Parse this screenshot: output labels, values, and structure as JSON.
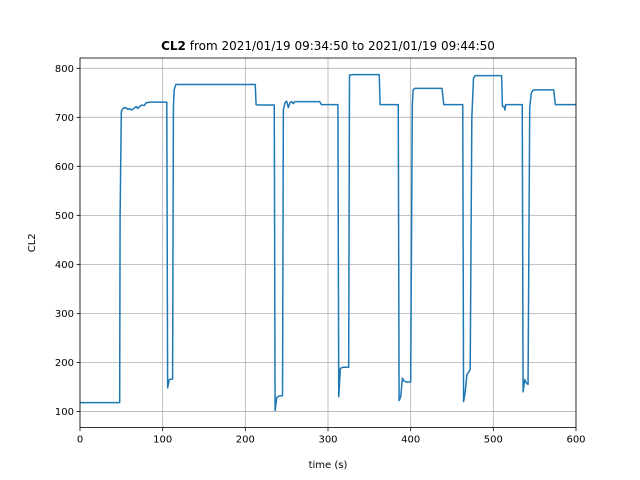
{
  "chart_data": {
    "type": "line",
    "title_bold": "CL2",
    "title_rest": " from 2021/01/19 09:34:50 to 2021/01/19 09:44:50",
    "xlabel": "time (s)",
    "ylabel": "CL2",
    "xlim": [
      0,
      600
    ],
    "ylim": [
      67,
      821
    ],
    "xticks": [
      0,
      100,
      200,
      300,
      400,
      500,
      600
    ],
    "yticks": [
      100,
      200,
      300,
      400,
      500,
      600,
      700,
      800
    ],
    "grid": true,
    "line_color": "#1f77b4",
    "series": [
      {
        "x": [
          0,
          48,
          48.5,
          50,
          52,
          55,
          58,
          60,
          62,
          65,
          68,
          70,
          72,
          75,
          78,
          80,
          82,
          85,
          90,
          95,
          100,
          102,
          103,
          105,
          106,
          108,
          110,
          112,
          113,
          114,
          116,
          120,
          140,
          160,
          180,
          200,
          212,
          213,
          215,
          225,
          235,
          236,
          238,
          240,
          243,
          245,
          246,
          248,
          250,
          252,
          254,
          256,
          258,
          260,
          270,
          280,
          290,
          292,
          300,
          310,
          312,
          313,
          315,
          318,
          320,
          323,
          325,
          326,
          330,
          340,
          350,
          362,
          363,
          365,
          375,
          385,
          386,
          388,
          390,
          392,
          395,
          398,
          400,
          402,
          403,
          405,
          410,
          420,
          430,
          438,
          440,
          445,
          450,
          460,
          463,
          464,
          466,
          468,
          470,
          472,
          474,
          476,
          478,
          480,
          490,
          500,
          510,
          511,
          513,
          514,
          515,
          520,
          530,
          535,
          536,
          538,
          540,
          542,
          544,
          546,
          548,
          550,
          560,
          570,
          573,
          575,
          580,
          590,
          600
        ],
        "y": [
          118,
          118,
          500,
          712,
          718,
          720,
          716,
          718,
          715,
          718,
          722,
          718,
          722,
          725,
          724,
          730,
          730,
          731,
          731,
          731,
          731,
          731,
          731,
          731,
          148,
          165,
          166,
          166,
          720,
          757,
          767,
          767,
          767,
          767,
          767,
          767,
          767,
          726,
          725,
          725,
          725,
          102,
          128,
          131,
          132,
          132,
          715,
          730,
          733,
          720,
          730,
          732,
          728,
          732,
          732,
          732,
          732,
          726,
          726,
          726,
          726,
          130,
          188,
          190,
          190,
          190,
          190,
          786,
          787,
          787,
          787,
          787,
          726,
          726,
          726,
          726,
          122,
          130,
          168,
          162,
          160,
          160,
          160,
          726,
          756,
          759,
          759,
          759,
          759,
          759,
          726,
          726,
          726,
          726,
          726,
          120,
          140,
          175,
          180,
          185,
          700,
          780,
          785,
          785,
          785,
          785,
          785,
          722,
          722,
          715,
          726,
          726,
          726,
          726,
          140,
          165,
          158,
          155,
          720,
          750,
          755,
          756,
          756,
          756,
          756,
          726,
          726,
          726,
          726
        ]
      }
    ]
  }
}
